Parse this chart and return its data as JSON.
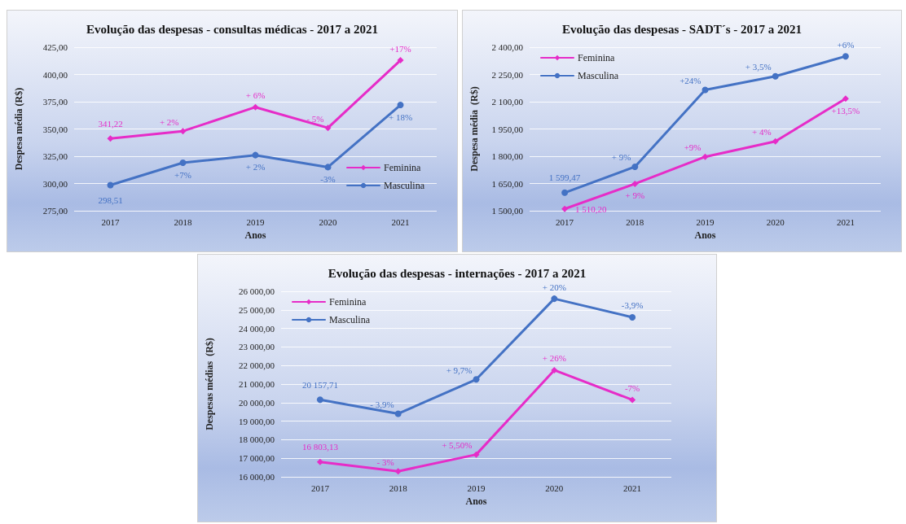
{
  "chart_data": [
    {
      "type": "line",
      "title": "Evolução das despesas - consultas médicas - 2017 a 2021",
      "xlabel": "Anos",
      "ylabel": "Despesa média (R$)",
      "categories": [
        "2017",
        "2018",
        "2019",
        "2020",
        "2021"
      ],
      "series": [
        {
          "name": "Feminina",
          "color": "#e62cc8",
          "marker": "diamond",
          "values": [
            341.22,
            348,
            370,
            351,
            413
          ],
          "value_labels": [
            "341,22",
            null,
            null,
            null,
            null
          ]
        },
        {
          "name": "Masculina",
          "color": "#4472c4",
          "marker": "circle",
          "values": [
            298.51,
            319,
            326,
            315,
            372
          ],
          "value_labels": [
            "298,51",
            null,
            null,
            null,
            null
          ]
        }
      ],
      "annotations": [
        {
          "text": "+ 2%",
          "x": "2018",
          "y": 348
        },
        {
          "text": "+ 6%",
          "x": "2019",
          "y": 370
        },
        {
          "text": "- 5%",
          "x": "2020",
          "y": 351
        },
        {
          "text": "+17%",
          "x": "2021",
          "y": 413
        },
        {
          "text": "+7%",
          "x": "2018",
          "y": 319
        },
        {
          "text": "+ 2%",
          "x": "2019",
          "y": 326
        },
        {
          "text": "-3%",
          "x": "2020",
          "y": 315
        },
        {
          "text": "+ 18%",
          "x": "2021",
          "y": 372
        }
      ],
      "ylim": [
        275,
        425
      ],
      "yticks": [
        {
          "value": 275,
          "label": "275,00"
        },
        {
          "value": 300,
          "label": "300,00"
        },
        {
          "value": 325,
          "label": "325,00"
        },
        {
          "value": 350,
          "label": "350,00"
        },
        {
          "value": 375,
          "label": "375,00"
        },
        {
          "value": 400,
          "label": "400,00"
        },
        {
          "value": 425,
          "label": "425,00"
        }
      ],
      "grid": "y",
      "legend": "bottom right",
      "line_style": "solid"
    },
    {
      "type": "line",
      "title": "Evolução das despesas - SADT´s - 2017 a 2021",
      "xlabel": "Anos",
      "ylabel": "Despesa média  (R$)",
      "categories": [
        "2017",
        "2018",
        "2019",
        "2020",
        "2021"
      ],
      "series": [
        {
          "name": "Feminina",
          "color": "#e62cc8",
          "marker": "diamond",
          "values": [
            1510.2,
            1648,
            1797,
            1882,
            2117
          ],
          "value_labels": [
            "1 510,20",
            null,
            null,
            null,
            null
          ]
        },
        {
          "name": "Masculina",
          "color": "#4472c4",
          "marker": "circle",
          "values": [
            1599.47,
            1742,
            2165,
            2240,
            2350
          ],
          "value_labels": [
            "1 599,47",
            null,
            null,
            null,
            null
          ]
        }
      ],
      "annotations": [
        {
          "text": "+ 9%",
          "x": "2018",
          "y": 1648
        },
        {
          "text": "+9%",
          "x": "2019",
          "y": 1797
        },
        {
          "text": "+ 4%",
          "x": "2020",
          "y": 1882
        },
        {
          "text": "+13,5%",
          "x": "2021",
          "y": 2117
        },
        {
          "text": "+ 9%",
          "x": "2018",
          "y": 1742
        },
        {
          "text": "+24%",
          "x": "2019",
          "y": 2165
        },
        {
          "text": "+ 3,5%",
          "x": "2020",
          "y": 2240
        },
        {
          "text": "+6%",
          "x": "2021",
          "y": 2350
        }
      ],
      "ylim": [
        1500,
        2400
      ],
      "yticks": [
        {
          "value": 1500,
          "label": "1 500,00"
        },
        {
          "value": 1650,
          "label": "1 650,00"
        },
        {
          "value": 1800,
          "label": "1 800,00"
        },
        {
          "value": 1950,
          "label": "1 950,00"
        },
        {
          "value": 2100,
          "label": "2 100,00"
        },
        {
          "value": 2250,
          "label": "2 250,00"
        },
        {
          "value": 2400,
          "label": "2 400,00"
        }
      ],
      "grid": "y",
      "legend": "top left",
      "line_style": "solid"
    },
    {
      "type": "line",
      "title": "Evolução das despesas - internações - 2017 a 2021",
      "xlabel": "Anos",
      "ylabel": "Despesas médias  (R$)",
      "categories": [
        "2017",
        "2018",
        "2019",
        "2020",
        "2021"
      ],
      "series": [
        {
          "name": "Feminina",
          "color": "#e62cc8",
          "marker": "diamond",
          "values": [
            16803.13,
            16300,
            17200,
            21750,
            20150
          ],
          "value_labels": [
            "16 803,13",
            null,
            null,
            null,
            null
          ]
        },
        {
          "name": "Masculina",
          "color": "#4472c4",
          "marker": "circle",
          "values": [
            20157.71,
            19400,
            21250,
            25600,
            24600
          ],
          "value_labels": [
            "20 157,71",
            null,
            null,
            null,
            null
          ]
        }
      ],
      "annotations": [
        {
          "text": "- 3%",
          "x": "2018",
          "y": 16300
        },
        {
          "text": "+ 5,50%",
          "x": "2019",
          "y": 17200
        },
        {
          "text": "+ 26%",
          "x": "2020",
          "y": 21750
        },
        {
          "text": "-7%",
          "x": "2021",
          "y": 20150
        },
        {
          "text": "- 3,9%",
          "x": "2018",
          "y": 19400
        },
        {
          "text": "+ 9,7%",
          "x": "2019",
          "y": 21250
        },
        {
          "text": "+ 20%",
          "x": "2020",
          "y": 25600
        },
        {
          "text": "-3,9%",
          "x": "2021",
          "y": 24600
        }
      ],
      "ylim": [
        16000,
        26000
      ],
      "yticks": [
        {
          "value": 16000,
          "label": "16 000,00"
        },
        {
          "value": 17000,
          "label": "17 000,00"
        },
        {
          "value": 18000,
          "label": "18 000,00"
        },
        {
          "value": 19000,
          "label": "19 000,00"
        },
        {
          "value": 20000,
          "label": "20 000,00"
        },
        {
          "value": 21000,
          "label": "21 000,00"
        },
        {
          "value": 22000,
          "label": "22 000,00"
        },
        {
          "value": 23000,
          "label": "23 000,00"
        },
        {
          "value": 24000,
          "label": "24 000,00"
        },
        {
          "value": 25000,
          "label": "25 000,00"
        },
        {
          "value": 26000,
          "label": "26 000,00"
        }
      ],
      "grid": "y",
      "legend": "top left",
      "line_style": "solid"
    }
  ]
}
